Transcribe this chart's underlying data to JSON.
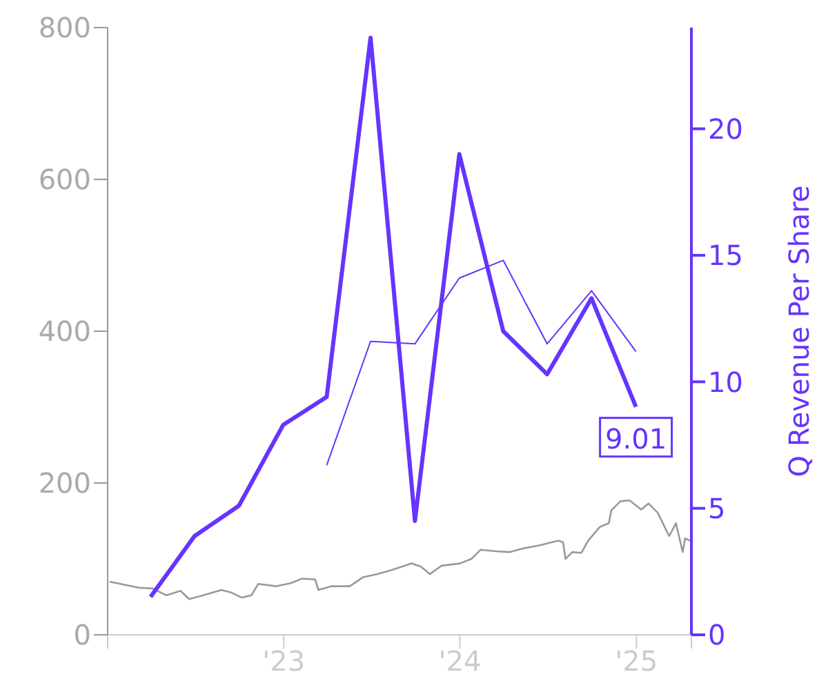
{
  "chart_data": {
    "type": "line",
    "y2label": "Q Revenue Per Share",
    "xlim": [
      "2022-01-01",
      "2025-04-25"
    ],
    "xticks": [
      {
        "value": "2022-01-01",
        "label": null
      },
      {
        "value": "2023-01-01",
        "label": "'23"
      },
      {
        "value": "2024-01-01",
        "label": "'24"
      },
      {
        "value": "2025-01-01",
        "label": "'25"
      },
      {
        "value": "2025-04-25",
        "label": null
      }
    ],
    "ylim": [
      0,
      800
    ],
    "yticks": [
      0,
      200,
      400,
      600,
      800
    ],
    "y2lim": [
      0,
      24
    ],
    "y2ticks": [
      0,
      5,
      10,
      15,
      20
    ],
    "marker": "none",
    "grid": false,
    "legend": false,
    "series": [
      {
        "color": "#999999",
        "x": [
          "2022-01-05",
          "2022-03-07",
          "2022-04-04",
          "2022-05-03",
          "2022-06-01",
          "2022-06-19",
          "2022-07-18",
          "2022-08-25",
          "2022-09-13",
          "2022-10-06",
          "2022-10-26",
          "2022-11-09",
          "2022-12-17",
          "2023-01-15",
          "2023-02-08",
          "2023-03-07",
          "2023-03-14",
          "2023-04-10",
          "2023-05-18",
          "2023-06-15",
          "2023-07-14",
          "2023-08-11",
          "2023-09-04",
          "2023-09-23",
          "2023-10-12",
          "2023-10-31",
          "2023-11-24",
          "2024-01-01",
          "2024-01-25",
          "2024-02-13",
          "2024-03-17",
          "2024-04-14",
          "2024-05-13",
          "2024-06-15",
          "2024-07-23",
          "2024-08-02",
          "2024-08-07",
          "2024-08-21",
          "2024-09-09",
          "2024-09-23",
          "2024-10-17",
          "2024-11-05",
          "2024-11-10",
          "2024-11-29",
          "2024-12-18",
          "2025-01-11",
          "2025-01-26",
          "2025-02-14",
          "2025-03-10",
          "2025-03-24",
          "2025-04-07",
          "2025-04-12",
          "2025-04-22"
        ],
        "values": [
          70,
          62,
          61,
          52,
          58,
          47,
          52,
          59,
          56,
          49,
          52,
          67,
          64,
          68,
          74,
          73,
          59,
          64,
          64,
          76,
          80,
          85,
          90,
          94,
          90,
          80,
          91,
          94,
          100,
          112,
          110,
          109,
          114,
          118,
          124,
          122,
          100,
          109,
          108,
          124,
          142,
          147,
          164,
          176,
          177,
          165,
          173,
          161,
          130,
          147,
          109,
          127,
          124
        ]
      },
      {
        "color": "#6633ff",
        "axis": "y2",
        "x": [
          "2022-03-31",
          "2022-06-30",
          "2022-09-30",
          "2022-12-31",
          "2023-03-31",
          "2023-06-30",
          "2023-09-30",
          "2023-12-31",
          "2024-03-31",
          "2024-06-30",
          "2024-09-30",
          "2024-12-31"
        ],
        "values": [
          1.5,
          3.9,
          5.1,
          8.3,
          9.4,
          23.6,
          4.5,
          19.0,
          12.0,
          10.3,
          13.3,
          9.01
        ],
        "value_labels": [
          null,
          null,
          null,
          null,
          null,
          null,
          null,
          null,
          null,
          null,
          null,
          "9.01"
        ]
      },
      {
        "color": "#6633ff",
        "axis": "y2",
        "x": [
          "2023-03-31",
          "2023-06-30",
          "2023-09-30",
          "2023-12-31",
          "2024-03-31",
          "2024-06-30",
          "2024-09-30",
          "2024-12-31"
        ],
        "values": [
          6.7,
          11.6,
          11.5,
          14.1,
          14.8,
          11.5,
          13.6,
          11.2
        ]
      }
    ]
  }
}
